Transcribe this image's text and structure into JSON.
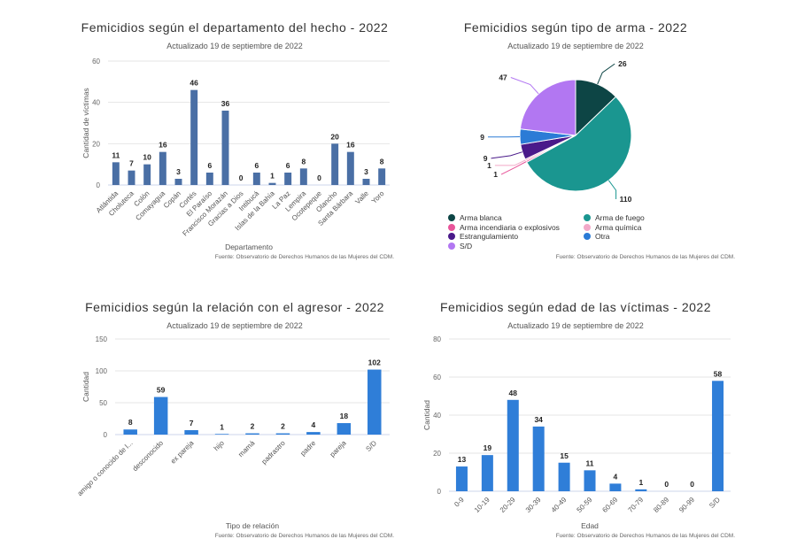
{
  "chart_data": [
    {
      "type": "bar",
      "title": "Femicidios según el departamento del hecho - 2022",
      "subtitle": "Actualizado 19 de septiembre de 2022",
      "xlabel": "Departamento",
      "ylabel": "Cantidad de víctimas",
      "ylim": [
        0,
        60
      ],
      "yticks": [
        0,
        20,
        40,
        60
      ],
      "grid": true,
      "color": "#4a6fa5",
      "categories": [
        "Atlántida",
        "Choluteca",
        "Colón",
        "Comayagua",
        "Copán",
        "Cortés",
        "El Paraíso",
        "Francisco Morazán",
        "Gracias a Dios",
        "Intibucá",
        "Islas de la Bahía",
        "La Paz",
        "Lempira",
        "Ocotepeque",
        "Olancho",
        "Santa Bárbara",
        "Valle",
        "Yoro"
      ],
      "values": [
        11,
        7,
        10,
        16,
        3,
        46,
        6,
        36,
        0,
        6,
        1,
        6,
        8,
        0,
        20,
        16,
        3,
        8
      ],
      "credit": "Fuente: Observatorio de Derechos Humanos de las Mujeres del CDM."
    },
    {
      "type": "pie",
      "title": "Femicidios según tipo de arma - 2022",
      "subtitle": "Actualizado 19 de septiembre de 2022",
      "categories": [
        "Arma blanca",
        "Arma de fuego",
        "Arma incendiaria o explosivos",
        "Arma química",
        "Estrangulamiento",
        "Otra",
        "S/D"
      ],
      "values": [
        26,
        110,
        1,
        1,
        9,
        9,
        47
      ],
      "colors": [
        "#0d4545",
        "#1a9690",
        "#e8559a",
        "#f2a8c8",
        "#4a1a8a",
        "#2b7bd6",
        "#b277f2"
      ],
      "legend_position": "bottom",
      "credit": "Fuente: Observatorio de Derechos Humanos de las Mujeres del CDM."
    },
    {
      "type": "bar",
      "title": "Femicidios según la relación con el agresor - 2022",
      "subtitle": "Actualizado 19 de septiembre de 2022",
      "xlabel": "Tipo de relación",
      "ylabel": "Cantidad",
      "ylim": [
        0,
        150
      ],
      "yticks": [
        0,
        50,
        100,
        150
      ],
      "grid": true,
      "color": "#2f7ed8",
      "categories": [
        "amigo o conocido de l...",
        "desconocido",
        "ex pareja",
        "hijo",
        "mamá",
        "padrastro",
        "padre",
        "pareja",
        "S/D"
      ],
      "values": [
        8,
        59,
        7,
        1,
        2,
        2,
        4,
        18,
        102
      ],
      "credit": "Fuente: Observatorio de Derechos Humanos de las Mujeres del CDM."
    },
    {
      "type": "bar",
      "title": "Femicidios según edad de las víctimas - 2022",
      "subtitle": "Actualizado 19 de septiembre de 2022",
      "xlabel": "Edad",
      "ylabel": "Cantidad",
      "ylim": [
        0,
        80
      ],
      "yticks": [
        0,
        20,
        40,
        60,
        80
      ],
      "grid": true,
      "color": "#2f7ed8",
      "categories": [
        "0-9",
        "10-19",
        "20-29",
        "30-39",
        "40-49",
        "50-59",
        "60-69",
        "70-79",
        "80-89",
        "90-99",
        "S/D"
      ],
      "values": [
        13,
        19,
        48,
        34,
        15,
        11,
        4,
        1,
        0,
        0,
        58
      ],
      "credit": "Fuente: Observatorio de Derechos Humanos de las Mujeres del CDM."
    }
  ]
}
